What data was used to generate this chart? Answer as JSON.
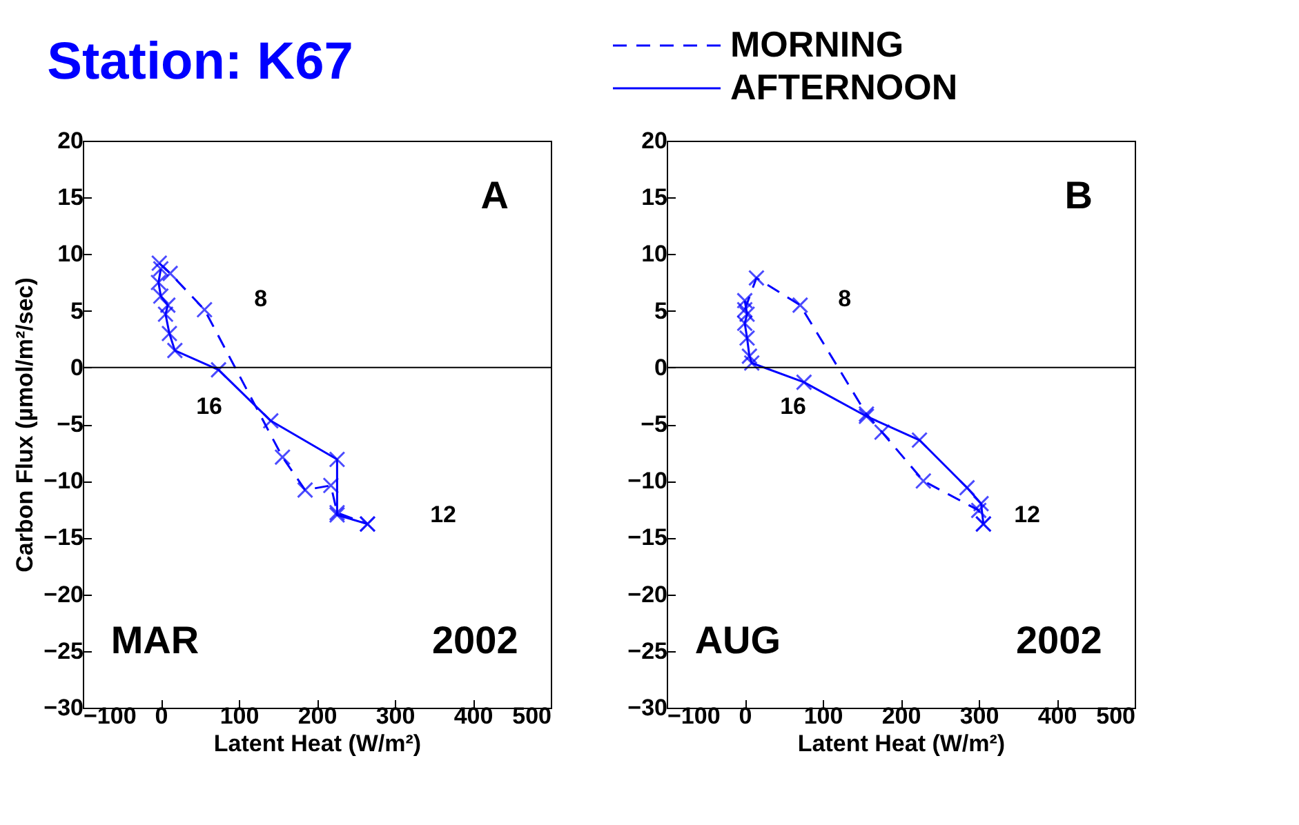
{
  "chart_data": [
    {
      "type": "line",
      "title": "Station: K67",
      "xlabel": "Latent Heat (W/m²)",
      "ylabel": "Carbon Flux (µmol/m²/sec)",
      "xlim": [
        -100,
        500
      ],
      "ylim": [
        -30,
        20
      ],
      "xticks": [
        -100,
        0,
        100,
        200,
        300,
        400,
        500
      ],
      "yticks": [
        -30,
        -25,
        -20,
        -15,
        -10,
        -5,
        0,
        5,
        10,
        15,
        20
      ],
      "marker": "cross",
      "grid": false,
      "series": [
        {
          "color": "#0000ff",
          "line_style": "dashed",
          "x": [
            -2,
            12,
            56,
            156,
            185,
            218,
            226,
            265
          ],
          "values": [
            9.2,
            8.3,
            5.1,
            -7.9,
            -10.8,
            -10.4,
            -12.8,
            -13.8
          ]
        },
        {
          "color": "#0000ff",
          "line_style": "solid",
          "x": [
            265,
            226,
            226,
            141,
            74,
            18,
            11,
            6,
            9,
            0,
            -3,
            0
          ],
          "values": [
            -13.8,
            -13.0,
            -8.1,
            -4.7,
            -0.2,
            1.5,
            3.0,
            4.7,
            5.5,
            6.3,
            7.5,
            8.7
          ]
        }
      ],
      "ref_lines": [
        {
          "axis": "y",
          "value": 0,
          "color": "#000000"
        }
      ],
      "annotations": [
        "A",
        "MAR",
        "2002",
        "8",
        "16",
        "12"
      ]
    },
    {
      "type": "line",
      "xlabel": "Latent Heat (W/m²)",
      "xlim": [
        -100,
        500
      ],
      "ylim": [
        -30,
        20
      ],
      "xticks": [
        -100,
        0,
        100,
        200,
        300,
        400,
        500
      ],
      "yticks": [
        -30,
        -25,
        -20,
        -15,
        -10,
        -5,
        0,
        5,
        10,
        15,
        20
      ],
      "marker": "cross",
      "grid": false,
      "legend": "top",
      "series": [
        {
          "name": "MORNING",
          "color": "#0000ff",
          "line_style": "dashed",
          "x": [
            0,
            15,
            71,
            156,
            176,
            229,
            300,
            306
          ],
          "values": [
            5.1,
            7.9,
            5.5,
            -4.1,
            -5.7,
            -10.0,
            -12.6,
            -13.8
          ]
        },
        {
          "name": "AFTERNOON",
          "color": "#0000ff",
          "line_style": "solid",
          "x": [
            306,
            303,
            285,
            224,
            156,
            76,
            9,
            6,
            3,
            0,
            3,
            0
          ],
          "values": [
            -13.8,
            -12.0,
            -10.6,
            -6.4,
            -4.3,
            -1.3,
            0.4,
            1.0,
            2.6,
            3.9,
            4.7,
            5.9
          ]
        }
      ],
      "ref_lines": [
        {
          "axis": "y",
          "value": 0,
          "color": "#000000"
        }
      ],
      "annotations": [
        "B",
        "AUG",
        "2002",
        "8",
        "16",
        "12"
      ]
    }
  ]
}
